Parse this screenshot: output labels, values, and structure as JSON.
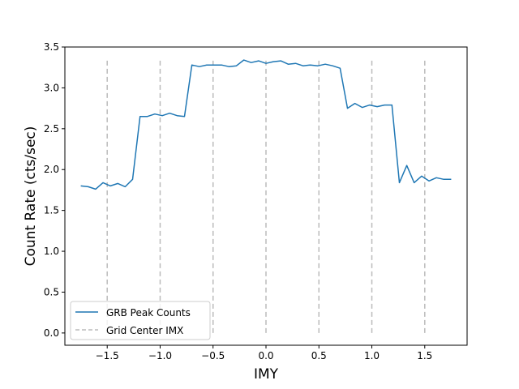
{
  "chart_data": {
    "type": "line",
    "xlabel": "IMY",
    "ylabel": "Count Rate (cts/sec)",
    "xlim": [
      -1.9,
      1.9
    ],
    "ylim": [
      -0.15,
      3.5
    ],
    "x_ticks": [
      -1.5,
      -1.0,
      -0.5,
      0.0,
      0.5,
      1.0,
      1.5
    ],
    "x_tick_labels": [
      "−1.5",
      "−1.0",
      "−0.5",
      "0.0",
      "0.5",
      "1.0",
      "1.5"
    ],
    "y_ticks": [
      0.0,
      0.5,
      1.0,
      1.5,
      2.0,
      2.5,
      3.0,
      3.5
    ],
    "y_tick_labels": [
      "0.0",
      "0.5",
      "1.0",
      "1.5",
      "2.0",
      "2.5",
      "3.0",
      "3.5"
    ],
    "grid": false,
    "legend_position": "lower-left",
    "series": [
      {
        "name": "GRB Peak Counts",
        "color": "#1f77b4",
        "style": "solid",
        "x": [
          -1.75,
          -1.68,
          -1.61,
          -1.54,
          -1.47,
          -1.4,
          -1.33,
          -1.26,
          -1.19,
          -1.12,
          -1.05,
          -0.98,
          -0.91,
          -0.84,
          -0.77,
          -0.7,
          -0.63,
          -0.56,
          -0.49,
          -0.42,
          -0.35,
          -0.28,
          -0.21,
          -0.14,
          -0.07,
          0.0,
          0.07,
          0.14,
          0.21,
          0.28,
          0.35,
          0.42,
          0.49,
          0.56,
          0.63,
          0.7,
          0.77,
          0.84,
          0.91,
          0.98,
          1.05,
          1.12,
          1.19,
          1.26,
          1.33,
          1.4,
          1.47,
          1.54,
          1.61,
          1.68,
          1.75
        ],
        "values": [
          1.8,
          1.79,
          1.76,
          1.84,
          1.8,
          1.83,
          1.79,
          1.88,
          2.65,
          2.65,
          2.68,
          2.66,
          2.69,
          2.66,
          2.65,
          3.28,
          3.26,
          3.28,
          3.28,
          3.28,
          3.26,
          3.27,
          3.34,
          3.31,
          3.33,
          3.3,
          3.32,
          3.33,
          3.29,
          3.3,
          3.27,
          3.28,
          3.27,
          3.29,
          3.27,
          3.24,
          2.75,
          2.81,
          2.76,
          2.79,
          2.77,
          2.79,
          2.79,
          1.84,
          2.05,
          1.84,
          1.92,
          1.86,
          1.9,
          1.88,
          1.88
        ]
      },
      {
        "name": "Grid Center IMX",
        "color": "#bbbbbb",
        "style": "dashed",
        "vlines": [
          -1.5,
          -1.0,
          -0.5,
          0.0,
          0.5,
          1.0,
          1.5
        ],
        "vline_range": [
          0.0,
          3.35
        ]
      }
    ]
  }
}
